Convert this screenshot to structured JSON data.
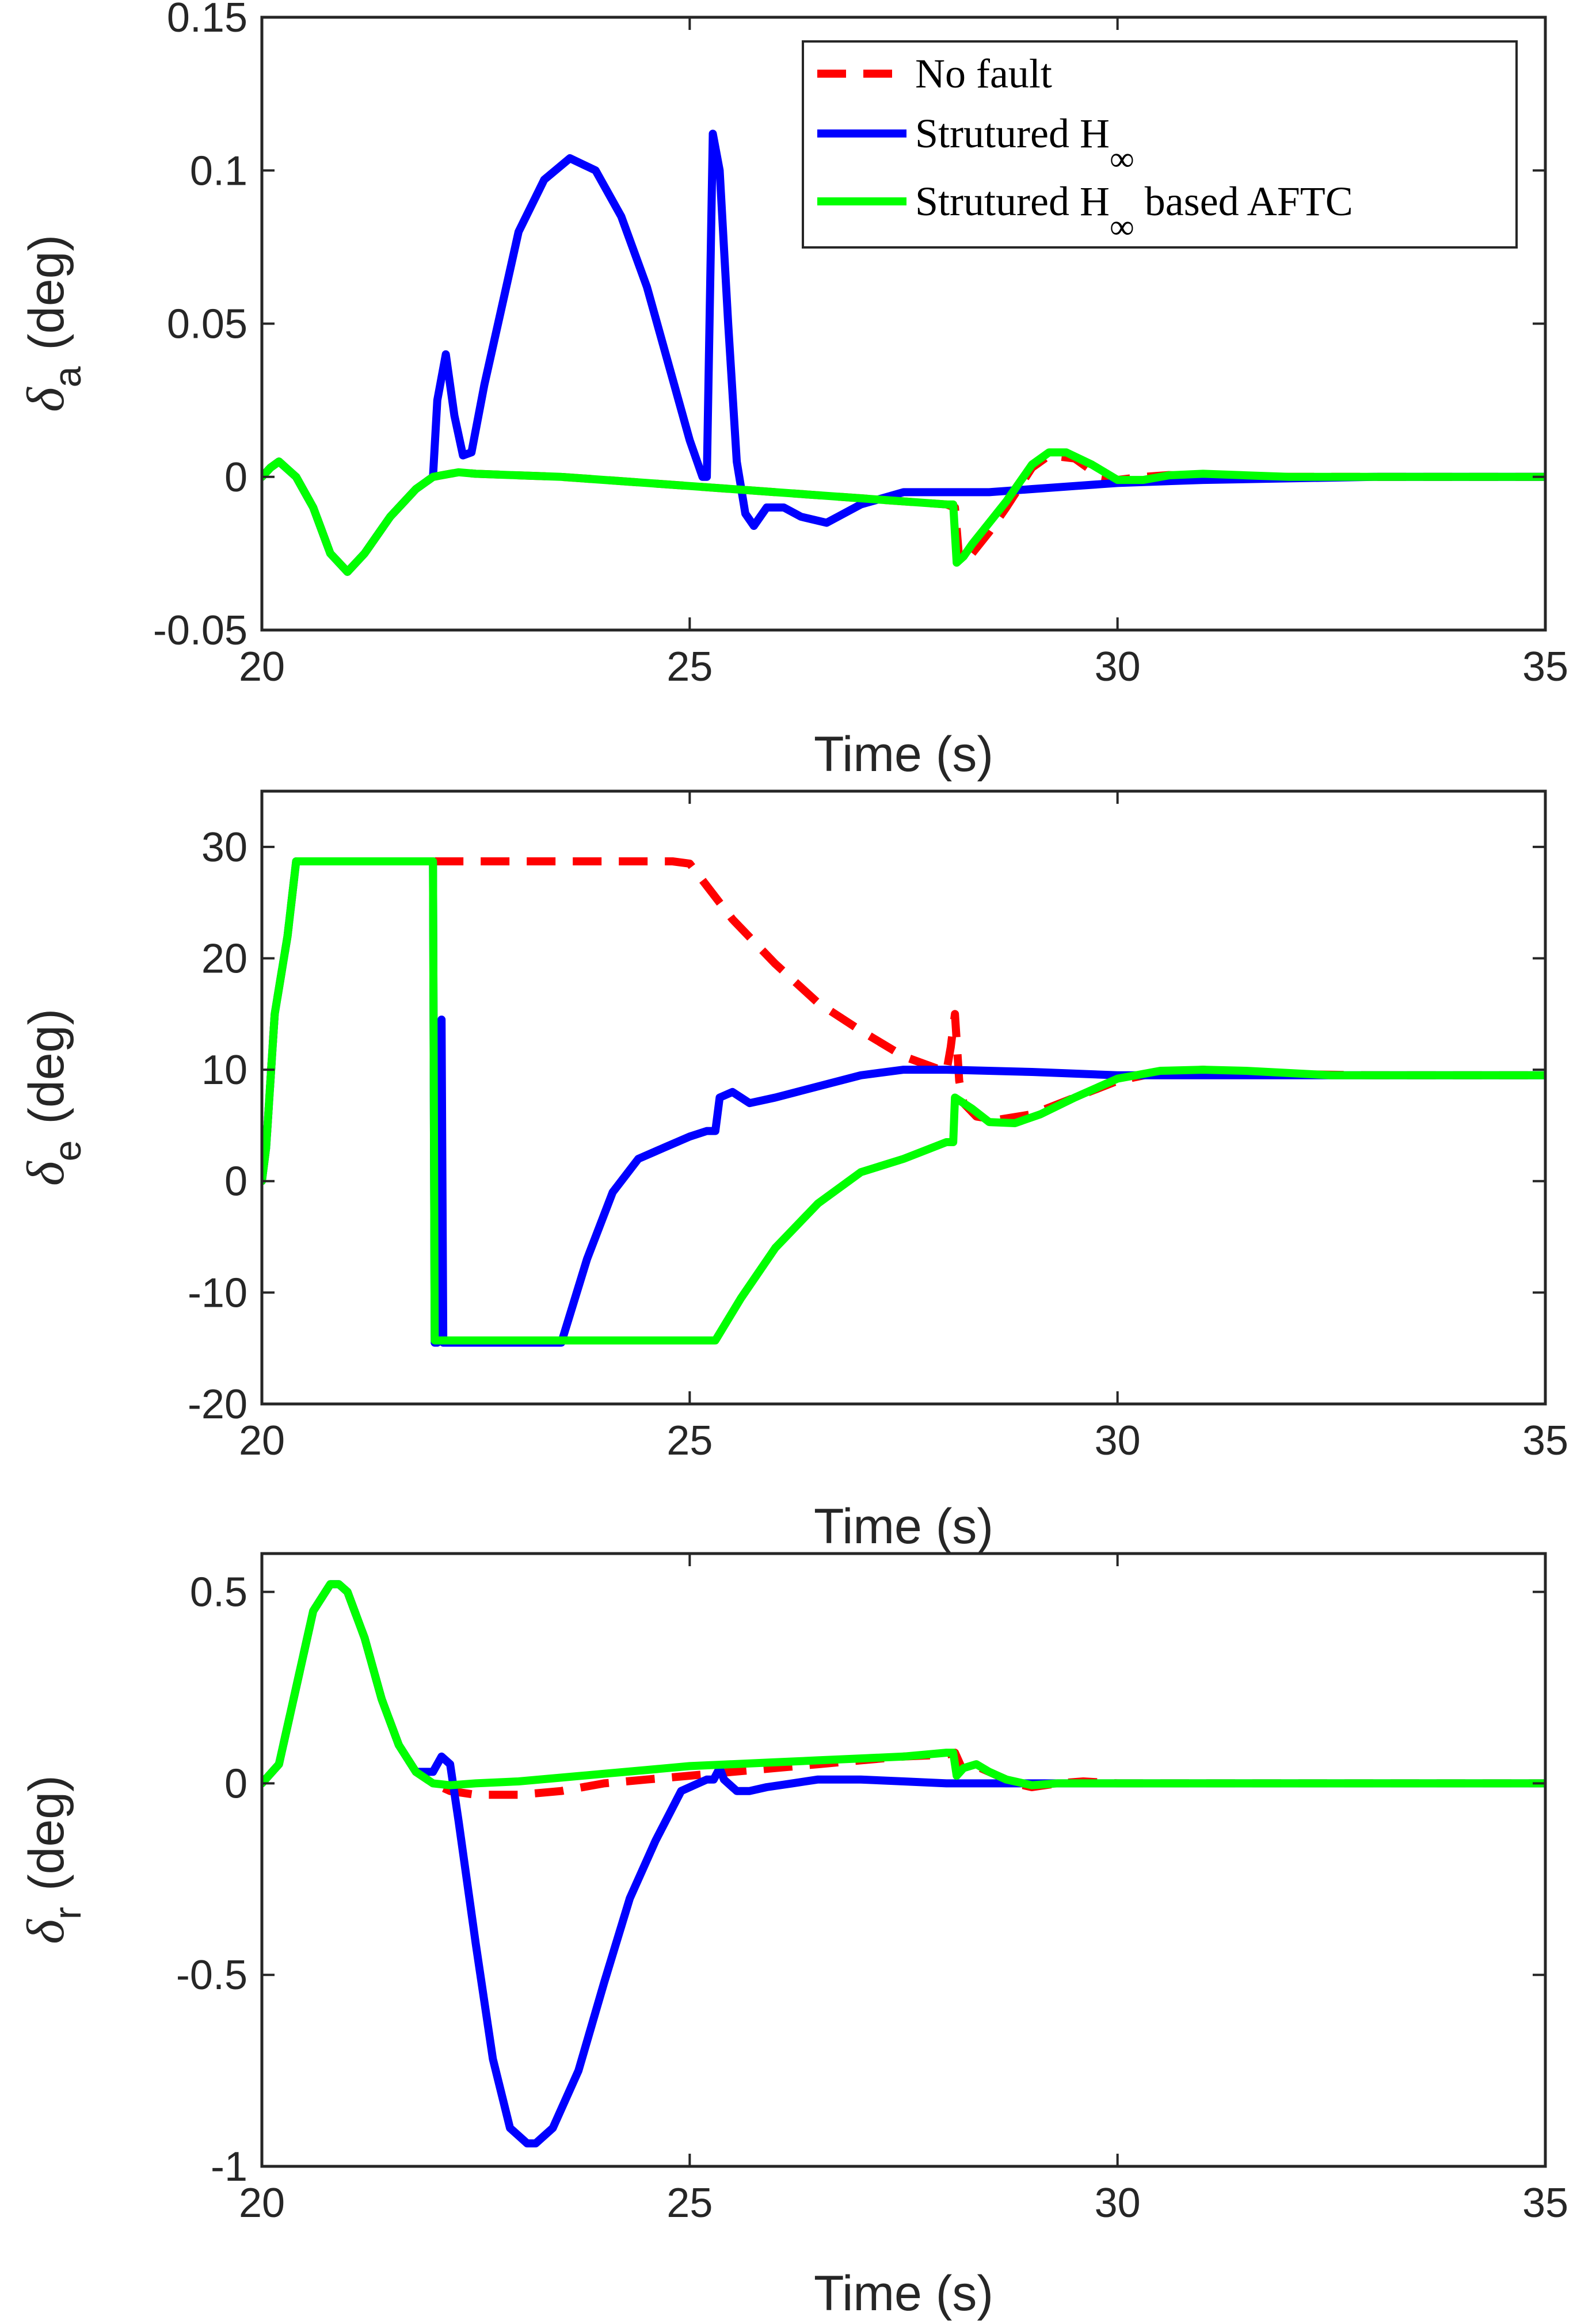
{
  "chart_data": [
    {
      "type": "line",
      "ylabel_symbol": "δ",
      "ylabel_sub": "a",
      "ylabel_unit": "(deg)",
      "xlabel": "Time (s)",
      "xlim": [
        20,
        35
      ],
      "ylim": [
        -0.05,
        0.15
      ],
      "xticks": [
        20,
        25,
        30,
        35
      ],
      "xtick_labels": [
        "20",
        "25",
        "30",
        "35"
      ],
      "yticks": [
        -0.05,
        0,
        0.05,
        0.1,
        0.15
      ],
      "ytick_labels": [
        "-0.05",
        "0",
        "0.05",
        "0.1",
        "0.15"
      ],
      "legend": {
        "location": "top-right",
        "entries": [
          {
            "label": "No fault",
            "sub": ""
          },
          {
            "label": "Strutured H",
            "sub": "∞"
          },
          {
            "label": "Strutured H",
            "sub": "∞",
            "suffix": " based AFTC"
          }
        ]
      },
      "series": [
        {
          "name": "No fault",
          "color": "#ff0000",
          "style": "dashed",
          "x": [
            20,
            20.1,
            20.2,
            20.4,
            20.6,
            20.8,
            21.0,
            21.2,
            21.5,
            21.8,
            22.0,
            22.2,
            22.3,
            22.5,
            23,
            23.5,
            24,
            24.5,
            25,
            25.5,
            26,
            26.5,
            27,
            27.5,
            28,
            28.1,
            28.15,
            28.3,
            28.5,
            28.7,
            29,
            29.2,
            29.5,
            29.8,
            30,
            30.3,
            30.6,
            31,
            31.5,
            32,
            33,
            34,
            35
          ],
          "y": [
            0,
            0.003,
            0.005,
            0.0,
            -0.01,
            -0.025,
            -0.031,
            -0.025,
            -0.013,
            -0.004,
            0.0,
            0.001,
            0.0015,
            0.001,
            0.0005,
            0.0,
            -0.001,
            -0.002,
            -0.003,
            -0.004,
            -0.005,
            -0.006,
            -0.007,
            -0.008,
            -0.009,
            -0.01,
            -0.027,
            -0.025,
            -0.018,
            -0.01,
            0.003,
            0.007,
            0.006,
            0.0,
            -0.001,
            0.0,
            0.0006,
            0.0,
            0.0,
            0.0,
            0.0,
            0.0,
            0.0
          ]
        },
        {
          "name": "Strutured H∞",
          "color": "#0000ff",
          "style": "solid",
          "x": [
            20,
            20.1,
            20.2,
            20.4,
            20.6,
            20.8,
            21.0,
            21.2,
            21.5,
            21.8,
            22.0,
            22.05,
            22.15,
            22.25,
            22.35,
            22.45,
            22.6,
            22.8,
            23.0,
            23.3,
            23.6,
            23.9,
            24.2,
            24.5,
            24.8,
            25.0,
            25.15,
            25.2,
            25.27,
            25.35,
            25.45,
            25.55,
            25.65,
            25.75,
            25.9,
            26.1,
            26.3,
            26.6,
            27.0,
            27.5,
            28.0,
            28.5,
            29,
            29.5,
            30,
            31,
            32,
            33,
            34,
            35
          ],
          "y": [
            0,
            0.003,
            0.005,
            0.0,
            -0.01,
            -0.025,
            -0.031,
            -0.025,
            -0.013,
            -0.004,
            0.0,
            0.025,
            0.04,
            0.02,
            0.007,
            0.008,
            0.03,
            0.055,
            0.08,
            0.097,
            0.104,
            0.1,
            0.085,
            0.062,
            0.032,
            0.012,
            0.0,
            0.0,
            0.112,
            0.1,
            0.05,
            0.005,
            -0.012,
            -0.016,
            -0.01,
            -0.01,
            -0.013,
            -0.015,
            -0.009,
            -0.005,
            -0.005,
            -0.005,
            -0.004,
            -0.003,
            -0.002,
            -0.001,
            -0.0005,
            0.0,
            0.0,
            0.0
          ]
        },
        {
          "name": "Strutured H∞ based AFTC",
          "color": "#00ff00",
          "style": "solid",
          "x": [
            20,
            20.1,
            20.2,
            20.4,
            20.6,
            20.8,
            21.0,
            21.2,
            21.5,
            21.8,
            22.0,
            22.2,
            22.3,
            22.5,
            23,
            23.5,
            24,
            24.5,
            25,
            25.5,
            26,
            26.5,
            27,
            27.5,
            28,
            28.08,
            28.12,
            28.2,
            28.3,
            28.5,
            28.7,
            29,
            29.2,
            29.4,
            29.7,
            30,
            30.3,
            30.6,
            31,
            31.5,
            32,
            33,
            34,
            35
          ],
          "y": [
            0,
            0.003,
            0.005,
            0.0,
            -0.01,
            -0.025,
            -0.031,
            -0.025,
            -0.013,
            -0.004,
            0.0,
            0.001,
            0.0015,
            0.001,
            0.0005,
            0.0,
            -0.001,
            -0.002,
            -0.003,
            -0.004,
            -0.005,
            -0.006,
            -0.007,
            -0.008,
            -0.009,
            -0.009,
            -0.028,
            -0.026,
            -0.022,
            -0.015,
            -0.008,
            0.004,
            0.008,
            0.008,
            0.004,
            -0.001,
            -0.001,
            0.0005,
            0.001,
            0.0005,
            0.0,
            0.0,
            0.0,
            0.0
          ]
        }
      ]
    },
    {
      "type": "line",
      "ylabel_symbol": "δ",
      "ylabel_sub": "e",
      "ylabel_unit": "(deg)",
      "xlabel": "Time (s)",
      "xlim": [
        20,
        35
      ],
      "ylim": [
        -20,
        35
      ],
      "xticks": [
        20,
        25,
        30,
        35
      ],
      "xtick_labels": [
        "20",
        "25",
        "30",
        "35"
      ],
      "yticks": [
        -20,
        -10,
        0,
        10,
        20,
        30
      ],
      "ytick_labels": [
        "-20",
        "-10",
        "0",
        "10",
        "20",
        "30"
      ],
      "series": [
        {
          "name": "No fault",
          "color": "#ff0000",
          "style": "dashed",
          "x": [
            20,
            20.05,
            20.15,
            20.3,
            20.4,
            22.0,
            22.5,
            23,
            24,
            24.8,
            25.0,
            25.5,
            26,
            26.5,
            27,
            27.5,
            28.0,
            28.05,
            28.1,
            28.15,
            28.2,
            28.35,
            28.6,
            29,
            29.5,
            30,
            30.5,
            31,
            31.5,
            32,
            33,
            34,
            35
          ],
          "y": [
            0,
            3,
            15,
            22,
            28.7,
            28.7,
            28.7,
            28.7,
            28.7,
            28.7,
            28.5,
            23.5,
            19.5,
            16,
            13.5,
            11.2,
            9.8,
            12,
            15,
            9,
            7,
            5.8,
            5.5,
            6,
            7.5,
            9,
            9.8,
            10,
            9.8,
            9.6,
            9.5,
            9.5,
            9.5
          ]
        },
        {
          "name": "Strutured H∞",
          "color": "#0000ff",
          "style": "solid",
          "x": [
            20,
            20.05,
            20.15,
            20.3,
            20.4,
            22.0,
            22.02,
            22.05,
            22.1,
            22.12,
            23.5,
            23.8,
            24.1,
            24.4,
            24.7,
            25.0,
            25.2,
            25.3,
            25.35,
            25.5,
            25.7,
            26,
            26.5,
            27,
            27.5,
            28,
            29,
            30,
            31,
            32,
            33,
            34,
            35
          ],
          "y": [
            0,
            3,
            15,
            22,
            28.7,
            28.7,
            -14.5,
            -14.5,
            14.5,
            -14.5,
            -14.5,
            -7,
            -1,
            2,
            3,
            4,
            4.5,
            4.5,
            7.5,
            8,
            7,
            7.5,
            8.5,
            9.5,
            10,
            10,
            9.8,
            9.5,
            9.5,
            9.5,
            9.5,
            9.5,
            9.5
          ]
        },
        {
          "name": "Strutured H∞ based AFTC",
          "color": "#00ff00",
          "style": "solid",
          "x": [
            20,
            20.05,
            20.15,
            20.3,
            20.4,
            22.0,
            22.02,
            25.3,
            25.6,
            26,
            26.5,
            27,
            27.5,
            28.0,
            28.08,
            28.1,
            28.3,
            28.5,
            28.8,
            29.1,
            29.5,
            30,
            30.5,
            31,
            31.5,
            32,
            32.5,
            33,
            34,
            35
          ],
          "y": [
            0,
            3,
            15,
            22,
            28.7,
            28.7,
            -14.3,
            -14.3,
            -10.5,
            -6,
            -2,
            0.8,
            2,
            3.5,
            3.5,
            7.5,
            6.5,
            5.3,
            5.2,
            6,
            7.5,
            9.2,
            9.9,
            10,
            9.9,
            9.7,
            9.5,
            9.5,
            9.5,
            9.5
          ]
        }
      ]
    },
    {
      "type": "line",
      "ylabel_symbol": "δ",
      "ylabel_sub": "r",
      "ylabel_unit": "(deg)",
      "xlabel": "Time (s)",
      "xlim": [
        20,
        35
      ],
      "ylim": [
        -1,
        0.6
      ],
      "xticks": [
        20,
        25,
        30,
        35
      ],
      "xtick_labels": [
        "20",
        "25",
        "30",
        "35"
      ],
      "yticks": [
        -1,
        -0.5,
        0,
        0.5
      ],
      "ytick_labels": [
        "-1",
        "-0.5",
        "0",
        "0.5"
      ],
      "series": [
        {
          "name": "No fault",
          "color": "#ff0000",
          "style": "dashed",
          "x": [
            20,
            20.2,
            20.4,
            20.6,
            20.8,
            20.9,
            21.0,
            21.2,
            21.4,
            21.6,
            21.8,
            22.0,
            22.2,
            22.5,
            23,
            23.5,
            24,
            24.5,
            25,
            25.5,
            26,
            26.5,
            27,
            27.5,
            28,
            28.1,
            28.2,
            28.4,
            28.6,
            28.8,
            29,
            29.3,
            29.6,
            30,
            31,
            32,
            33,
            34,
            35
          ],
          "y": [
            0,
            0.05,
            0.25,
            0.45,
            0.52,
            0.52,
            0.5,
            0.38,
            0.22,
            0.1,
            0.03,
            0.0,
            -0.02,
            -0.03,
            -0.03,
            -0.02,
            0.0,
            0.01,
            0.02,
            0.03,
            0.04,
            0.05,
            0.06,
            0.07,
            0.075,
            0.08,
            0.03,
            0.04,
            0.02,
            0.0,
            -0.01,
            0.0,
            0.005,
            0.0,
            0.0,
            0.0,
            0.0,
            0.0,
            0.0
          ]
        },
        {
          "name": "Strutured H∞",
          "color": "#0000ff",
          "style": "solid",
          "x": [
            20,
            20.2,
            20.4,
            20.6,
            20.8,
            20.9,
            21.0,
            21.2,
            21.4,
            21.6,
            21.8,
            22.0,
            22.1,
            22.2,
            22.3,
            22.5,
            22.7,
            22.9,
            23.1,
            23.2,
            23.4,
            23.7,
            24.0,
            24.3,
            24.6,
            24.9,
            25.1,
            25.2,
            25.28,
            25.35,
            25.4,
            25.55,
            25.7,
            25.9,
            26.2,
            26.5,
            27,
            27.5,
            28,
            29,
            30,
            31,
            32,
            33,
            34,
            35
          ],
          "y": [
            0,
            0.05,
            0.25,
            0.45,
            0.52,
            0.52,
            0.5,
            0.38,
            0.22,
            0.1,
            0.03,
            0.03,
            0.07,
            0.05,
            -0.1,
            -0.42,
            -0.72,
            -0.9,
            -0.94,
            -0.94,
            -0.9,
            -0.75,
            -0.52,
            -0.3,
            -0.15,
            -0.02,
            0.0,
            0.01,
            0.01,
            0.04,
            0.01,
            -0.02,
            -0.02,
            -0.01,
            0.0,
            0.01,
            0.01,
            0.005,
            0.0,
            0.0,
            0.0,
            0.0,
            0.0,
            0.0,
            0.0,
            0.0
          ]
        },
        {
          "name": "Strutured H∞ based AFTC",
          "color": "#00ff00",
          "style": "solid",
          "x": [
            20,
            20.2,
            20.4,
            20.6,
            20.8,
            20.9,
            21.0,
            21.2,
            21.4,
            21.6,
            21.8,
            22.0,
            22.2,
            22.5,
            23,
            23.5,
            24,
            24.5,
            25,
            25.5,
            26,
            26.5,
            27,
            27.5,
            28,
            28.08,
            28.12,
            28.2,
            28.35,
            28.5,
            28.7,
            29,
            29.3,
            29.6,
            30,
            30.5,
            31,
            32,
            33,
            34,
            35
          ],
          "y": [
            0,
            0.05,
            0.25,
            0.45,
            0.52,
            0.52,
            0.5,
            0.38,
            0.22,
            0.1,
            0.03,
            0.0,
            -0.005,
            0.0,
            0.005,
            0.015,
            0.025,
            0.035,
            0.045,
            0.05,
            0.055,
            0.06,
            0.065,
            0.07,
            0.08,
            0.08,
            0.02,
            0.04,
            0.05,
            0.03,
            0.01,
            -0.005,
            0.0,
            0.0,
            0.0,
            0.0,
            0.0,
            0.0,
            0.0,
            0.0,
            0.0
          ]
        }
      ]
    }
  ]
}
